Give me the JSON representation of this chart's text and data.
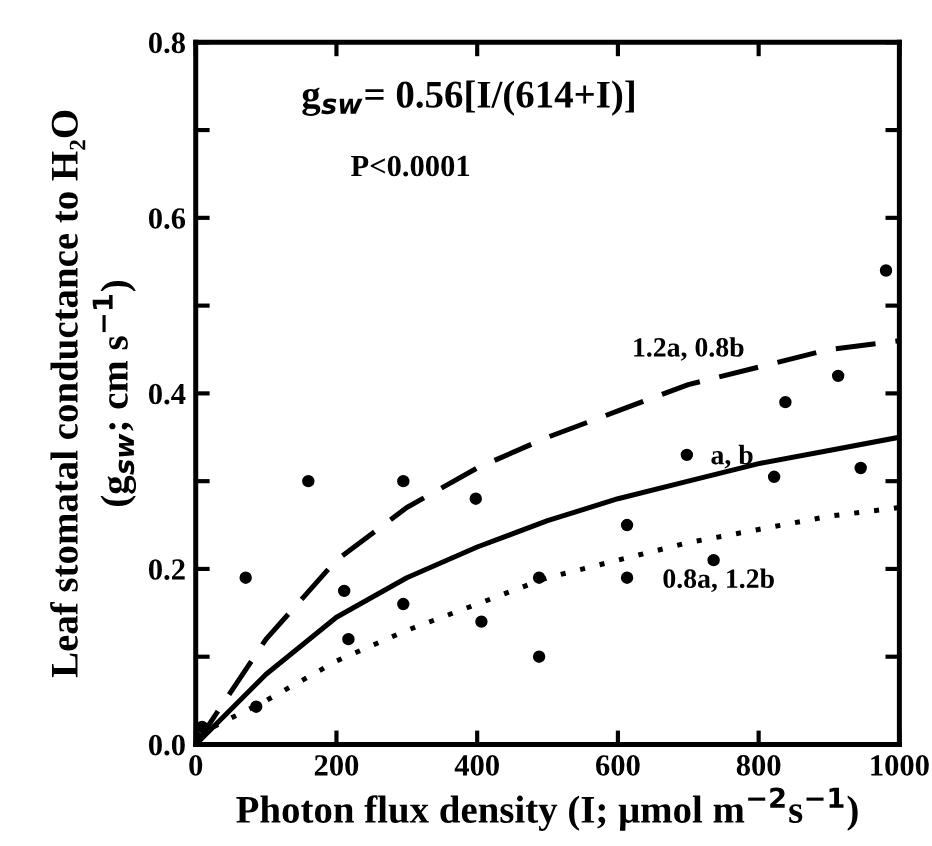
{
  "chart_data": {
    "type": "scatter",
    "xlabel": "Photon flux density (I; μmol m$^{−2}$s$^{−1}$)",
    "ylabel": "Leaf stomatal conductance to H₂O\n(g$_{sw}$; cm s$^{−1}$)",
    "annotations": [
      "g$_{sw}$= 0.56[I/(614+I)]",
      "P<0.0001"
    ],
    "xlim": [
      0,
      1000
    ],
    "ylim": [
      0,
      0.8
    ],
    "xticks": [
      0,
      200,
      400,
      600,
      800,
      1000
    ],
    "yticks": [
      {
        "value": 0.0,
        "label": "0.0"
      },
      {
        "value": 0.1,
        "label": null
      },
      {
        "value": 0.2,
        "label": "0.2"
      },
      {
        "value": 0.3,
        "label": null
      },
      {
        "value": 0.4,
        "label": "0.4"
      },
      {
        "value": 0.5,
        "label": null
      },
      {
        "value": 0.6,
        "label": "0.6"
      },
      {
        "value": 0.7,
        "label": null
      },
      {
        "value": 0.8,
        "label": "0.8"
      }
    ],
    "grid": false,
    "legend": false,
    "series": [
      {
        "color": "#000000",
        "marker": "circle",
        "x": [
          9,
          71,
          160,
          86,
          211,
          217,
          295,
          295,
          398,
          406,
          488,
          488,
          613,
          613,
          698,
          736,
          838,
          822,
          913,
          945,
          981
        ],
        "values": [
          0.02,
          0.19,
          0.3,
          0.043,
          0.175,
          0.12,
          0.3,
          0.16,
          0.28,
          0.14,
          0.19,
          0.1,
          0.25,
          0.19,
          0.33,
          0.21,
          0.39,
          0.305,
          0.42,
          0.315,
          0.54
        ]
      },
      {
        "type": "line",
        "name": "1.2a, 0.8b",
        "color": "#000000",
        "line_style": "dashed",
        "marker": "none",
        "x": [
          0,
          25,
          100,
          200,
          300,
          400,
          500,
          600,
          700,
          800,
          900,
          1000
        ],
        "values": [
          0,
          0.03,
          0.12,
          0.21,
          0.27,
          0.315,
          0.35,
          0.38,
          0.41,
          0.43,
          0.45,
          0.46
        ]
      },
      {
        "type": "line",
        "name": "a, b",
        "color": "#000000",
        "line_style": "solid",
        "marker": "none",
        "x": [
          0,
          100,
          200,
          300,
          400,
          500,
          600,
          700,
          800,
          900,
          1000
        ],
        "values": [
          0,
          0.08,
          0.145,
          0.19,
          0.225,
          0.255,
          0.28,
          0.3,
          0.32,
          0.335,
          0.35
        ]
      },
      {
        "type": "line",
        "name": "0.8a, 1.2b",
        "color": "#000000",
        "line_style": "dotted",
        "marker": "none",
        "x": [
          0,
          100,
          200,
          300,
          400,
          500,
          600,
          700,
          800,
          900,
          1000
        ],
        "values": [
          0.01,
          0.05,
          0.095,
          0.13,
          0.16,
          0.19,
          0.21,
          0.23,
          0.245,
          0.26,
          0.27
        ]
      }
    ]
  }
}
